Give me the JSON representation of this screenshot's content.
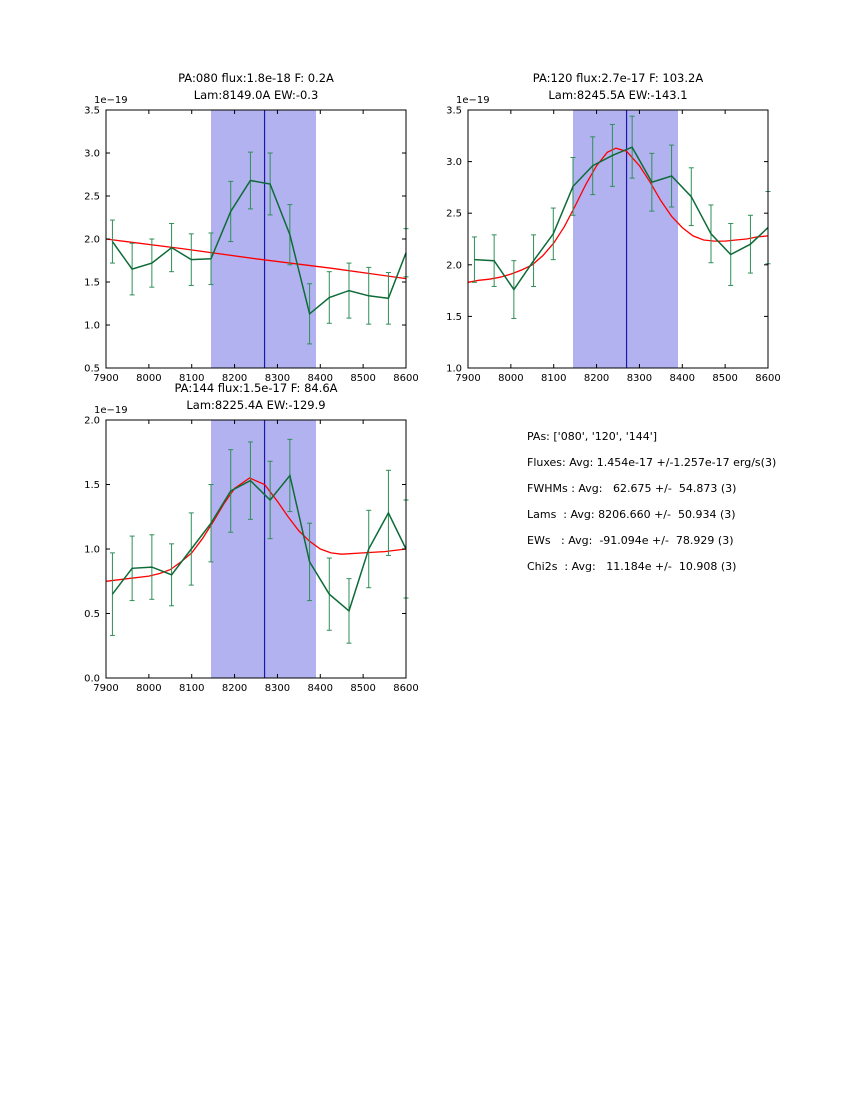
{
  "style": {
    "background": "#ffffff",
    "band_color": "#b2b2f0",
    "vline_color": "#1a1aa8",
    "data_color": "#0e6b38",
    "err_color": "#2f8f57",
    "fit_color": "#ff0000",
    "axis_color": "#000000"
  },
  "panel": {
    "lines": [
      "PAs: ['080', '120', '144']",
      "Fluxes: Avg: 1.454e-17 +/-1.257e-17 erg/s(3)",
      "FWHMs : Avg:   62.675 +/-  54.873 (3)",
      "Lams  : Avg: 8206.660 +/-  50.934 (3)",
      "EWs   : Avg:  -91.094e +/-  78.929 (3)",
      "Chi2s  : Avg:   11.184e +/-  10.908 (3)"
    ]
  },
  "chart_data": [
    {
      "type": "line",
      "title_line1": "PA:080 flux:1.8e-18 F: 0.2A",
      "title_line2": "Lam:8149.0A EW:-0.3",
      "offset_label": "1e−19",
      "xlabel": "",
      "ylabel": "",
      "xlim": [
        7900,
        8600
      ],
      "ylim": [
        0.5,
        3.5
      ],
      "xticks": [
        7900,
        8000,
        8100,
        8200,
        8300,
        8400,
        8500,
        8600
      ],
      "yticks": [
        0.5,
        1.0,
        1.5,
        2.0,
        2.5,
        3.0,
        3.5
      ],
      "band": [
        8145,
        8390
      ],
      "vline": 8270,
      "series": [
        {
          "name": "data",
          "color": "#0e6b38",
          "x": [
            7915,
            7961,
            8007,
            8053,
            8099,
            8145,
            8191,
            8237,
            8283,
            8329,
            8375,
            8421,
            8467,
            8513,
            8559,
            8600
          ],
          "y": [
            1.97,
            1.65,
            1.72,
            1.9,
            1.76,
            1.77,
            2.32,
            2.68,
            2.64,
            2.05,
            1.13,
            1.32,
            1.4,
            1.34,
            1.31,
            1.84
          ],
          "yerr": [
            0.25,
            0.3,
            0.28,
            0.28,
            0.3,
            0.3,
            0.35,
            0.33,
            0.36,
            0.35,
            0.35,
            0.3,
            0.32,
            0.33,
            0.3,
            0.28
          ]
        },
        {
          "name": "fit",
          "color": "#ff0000",
          "x": [
            7900,
            8075,
            8250,
            8425,
            8600
          ],
          "y": [
            2.0,
            1.89,
            1.77,
            1.66,
            1.54
          ]
        }
      ]
    },
    {
      "type": "line",
      "title_line1": "PA:120 flux:2.7e-17 F: 103.2A",
      "title_line2": "Lam:8245.5A EW:-143.1",
      "offset_label": "1e−19",
      "xlabel": "",
      "ylabel": "",
      "xlim": [
        7900,
        8600
      ],
      "ylim": [
        1.0,
        3.5
      ],
      "xticks": [
        7900,
        8000,
        8100,
        8200,
        8300,
        8400,
        8500,
        8600
      ],
      "yticks": [
        1.0,
        1.5,
        2.0,
        2.5,
        3.0,
        3.5
      ],
      "band": [
        8145,
        8390
      ],
      "vline": 8270,
      "series": [
        {
          "name": "data",
          "color": "#0e6b38",
          "x": [
            7915,
            7961,
            8007,
            8053,
            8099,
            8145,
            8191,
            8237,
            8283,
            8329,
            8375,
            8421,
            8467,
            8513,
            8559,
            8600
          ],
          "y": [
            2.05,
            2.04,
            1.76,
            2.04,
            2.3,
            2.76,
            2.96,
            3.06,
            3.14,
            2.8,
            2.86,
            2.66,
            2.3,
            2.1,
            2.2,
            2.36
          ],
          "yerr": [
            0.22,
            0.25,
            0.28,
            0.25,
            0.25,
            0.28,
            0.28,
            0.3,
            0.3,
            0.28,
            0.3,
            0.28,
            0.28,
            0.3,
            0.28,
            0.35
          ]
        },
        {
          "name": "fit",
          "color": "#ff0000",
          "x": [
            7900,
            7925,
            7950,
            7975,
            8000,
            8025,
            8050,
            8075,
            8100,
            8125,
            8150,
            8175,
            8200,
            8225,
            8245,
            8270,
            8300,
            8325,
            8350,
            8375,
            8400,
            8425,
            8450,
            8475,
            8500,
            8525,
            8550,
            8575,
            8600
          ],
          "y": [
            1.83,
            1.85,
            1.86,
            1.88,
            1.91,
            1.95,
            2.0,
            2.09,
            2.21,
            2.37,
            2.57,
            2.78,
            2.96,
            3.09,
            3.13,
            3.1,
            2.96,
            2.8,
            2.62,
            2.47,
            2.36,
            2.28,
            2.24,
            2.23,
            2.23,
            2.24,
            2.25,
            2.27,
            2.28
          ]
        }
      ]
    },
    {
      "type": "line",
      "title_line1": "PA:144 flux:1.5e-17 F: 84.6A",
      "title_line2": "Lam:8225.4A EW:-129.9",
      "offset_label": "1e−19",
      "xlabel": "",
      "ylabel": "",
      "xlim": [
        7900,
        8600
      ],
      "ylim": [
        0.0,
        2.0
      ],
      "xticks": [
        7900,
        8000,
        8100,
        8200,
        8300,
        8400,
        8500,
        8600
      ],
      "yticks": [
        0.0,
        0.5,
        1.0,
        1.5,
        2.0
      ],
      "band": [
        8145,
        8390
      ],
      "vline": 8270,
      "series": [
        {
          "name": "data",
          "color": "#0e6b38",
          "x": [
            7915,
            7961,
            8007,
            8053,
            8099,
            8145,
            8191,
            8237,
            8283,
            8329,
            8375,
            8421,
            8467,
            8513,
            8559,
            8600
          ],
          "y": [
            0.65,
            0.85,
            0.86,
            0.8,
            1.0,
            1.2,
            1.45,
            1.53,
            1.38,
            1.57,
            0.9,
            0.65,
            0.52,
            1.0,
            1.28,
            1.0
          ],
          "yerr": [
            0.32,
            0.25,
            0.25,
            0.24,
            0.28,
            0.3,
            0.32,
            0.3,
            0.3,
            0.28,
            0.3,
            0.28,
            0.25,
            0.3,
            0.33,
            0.38
          ]
        },
        {
          "name": "fit",
          "color": "#ff0000",
          "x": [
            7900,
            7950,
            8000,
            8025,
            8050,
            8075,
            8100,
            8125,
            8150,
            8175,
            8200,
            8235,
            8270,
            8300,
            8325,
            8350,
            8375,
            8400,
            8425,
            8450,
            8500,
            8550,
            8600
          ],
          "y": [
            0.75,
            0.77,
            0.79,
            0.81,
            0.84,
            0.9,
            0.97,
            1.08,
            1.21,
            1.35,
            1.47,
            1.55,
            1.5,
            1.37,
            1.25,
            1.14,
            1.06,
            1.0,
            0.97,
            0.96,
            0.97,
            0.98,
            1.0
          ]
        }
      ]
    }
  ]
}
